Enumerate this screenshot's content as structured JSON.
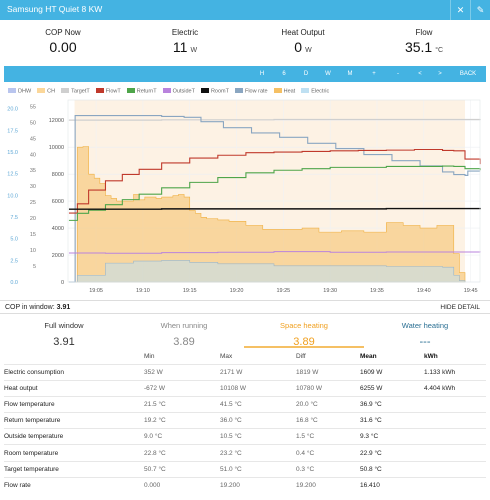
{
  "app": {
    "title": "Samsung HT Quiet 8 KW",
    "close_glyph": "✕",
    "edit_glyph": "✎"
  },
  "kpis": [
    {
      "label": "COP Now",
      "value": "0.00",
      "unit": ""
    },
    {
      "label": "Electric",
      "value": "11",
      "unit": "W"
    },
    {
      "label": "Heat Output",
      "value": "0",
      "unit": "W"
    },
    {
      "label": "Flow",
      "value": "35.1",
      "unit": "°C"
    }
  ],
  "controls": [
    "H",
    "6",
    "D",
    "W",
    "M",
    "+",
    "-",
    "<",
    ">",
    "BACK"
  ],
  "chart_data": {
    "type": "line",
    "legend": [
      {
        "name": "DHW",
        "color": "#b9c5ee"
      },
      {
        "name": "CH",
        "color": "#fbd79a"
      },
      {
        "name": "TargetT",
        "color": "#cfcfcf"
      },
      {
        "name": "FlowT",
        "color": "#c0392b"
      },
      {
        "name": "ReturnT",
        "color": "#4ea54a"
      },
      {
        "name": "OutsideT",
        "color": "#b983dd"
      },
      {
        "name": "RoomT",
        "color": "#111111"
      },
      {
        "name": "Flow rate",
        "color": "#8aa6c1"
      },
      {
        "name": "Heat",
        "color": "#f5c064"
      },
      {
        "name": "Electric",
        "color": "#bfe0f2"
      }
    ],
    "x_ticks": [
      "19:05",
      "19:10",
      "19:15",
      "19:20",
      "19:25",
      "19:30",
      "19:35",
      "19:40",
      "19:45"
    ],
    "y_power_ticks": [
      "0",
      "2000",
      "4000",
      "6000",
      "8000",
      "10000",
      "12000"
    ],
    "y_temp_ticks": [
      "5",
      "10",
      "15",
      "20",
      "25",
      "30",
      "35",
      "40",
      "45",
      "50",
      "55"
    ],
    "y_flow_ticks": [
      "0.0",
      "2.5",
      "5.0",
      "7.5",
      "10.0",
      "12.5",
      "15.0",
      "17.5",
      "20.0"
    ],
    "x_range": [
      19.0333,
      19.7667
    ],
    "y_power_range": [
      0,
      13500
    ],
    "y_temp_range": [
      0,
      57
    ],
    "y_flow_range": [
      0,
      21
    ],
    "series": [
      {
        "name": "Heat",
        "points": [
          [
            19.038,
            0
          ],
          [
            19.045,
            0
          ],
          [
            19.05,
            10000
          ],
          [
            19.06,
            10050
          ],
          [
            19.07,
            8000
          ],
          [
            19.08,
            7700
          ],
          [
            19.09,
            7300
          ],
          [
            19.1,
            6400
          ],
          [
            19.11,
            6200
          ],
          [
            19.12,
            6000
          ],
          [
            19.13,
            6000
          ],
          [
            19.14,
            6000
          ],
          [
            19.15,
            6500
          ],
          [
            19.16,
            6100
          ],
          [
            19.17,
            6300
          ],
          [
            19.18,
            6300
          ],
          [
            19.19,
            6200
          ],
          [
            19.2,
            6300
          ],
          [
            19.21,
            6300
          ],
          [
            19.22,
            6400
          ],
          [
            19.23,
            6500
          ],
          [
            19.24,
            6300
          ],
          [
            19.25,
            5300
          ],
          [
            19.26,
            5100
          ],
          [
            19.27,
            4800
          ],
          [
            19.28,
            4700
          ],
          [
            19.3,
            4600
          ],
          [
            19.32,
            4500
          ],
          [
            19.35,
            4200
          ],
          [
            19.38,
            3900
          ],
          [
            19.42,
            3900
          ],
          [
            19.45,
            4000
          ],
          [
            19.48,
            3700
          ],
          [
            19.52,
            3800
          ],
          [
            19.56,
            3700
          ],
          [
            19.6,
            4400
          ],
          [
            19.63,
            4200
          ],
          [
            19.66,
            4000
          ],
          [
            19.69,
            4200
          ],
          [
            19.72,
            2100
          ],
          [
            19.73,
            700
          ],
          [
            19.74,
            0
          ]
        ]
      },
      {
        "name": "Electric",
        "points": [
          [
            19.038,
            0
          ],
          [
            19.045,
            0
          ],
          [
            19.05,
            500
          ],
          [
            19.1,
            1400
          ],
          [
            19.15,
            1550
          ],
          [
            19.2,
            1600
          ],
          [
            19.25,
            1450
          ],
          [
            19.3,
            1350
          ],
          [
            19.4,
            1200
          ],
          [
            19.5,
            1200
          ],
          [
            19.6,
            1150
          ],
          [
            19.7,
            1100
          ],
          [
            19.72,
            500
          ],
          [
            19.73,
            100
          ],
          [
            19.74,
            0
          ]
        ]
      },
      {
        "name": "FlowT",
        "points": [
          [
            19.035,
            21.6
          ],
          [
            19.045,
            21.6
          ],
          [
            19.05,
            24.5
          ],
          [
            19.07,
            28.8
          ],
          [
            19.1,
            31.7
          ],
          [
            19.13,
            33.7
          ],
          [
            19.16,
            35.3
          ],
          [
            19.2,
            37.3
          ],
          [
            19.25,
            38.8
          ],
          [
            19.3,
            39.7
          ],
          [
            19.35,
            40.5
          ],
          [
            19.4,
            40.7
          ],
          [
            19.45,
            40.9
          ],
          [
            19.5,
            41.1
          ],
          [
            19.55,
            41.2
          ],
          [
            19.6,
            41.3
          ],
          [
            19.65,
            41.5
          ],
          [
            19.7,
            41.2
          ],
          [
            19.72,
            41.1
          ],
          [
            19.74,
            38.5
          ],
          [
            19.767,
            36.9
          ]
        ]
      },
      {
        "name": "ReturnT",
        "points": [
          [
            19.035,
            19.3
          ],
          [
            19.045,
            19.3
          ],
          [
            19.05,
            21.5
          ],
          [
            19.07,
            22.5
          ],
          [
            19.1,
            24.2
          ],
          [
            19.13,
            25.8
          ],
          [
            19.16,
            27.5
          ],
          [
            19.2,
            29.5
          ],
          [
            19.25,
            31.2
          ],
          [
            19.3,
            32.7
          ],
          [
            19.35,
            34.2
          ],
          [
            19.4,
            35.0
          ],
          [
            19.45,
            35.5
          ],
          [
            19.5,
            35.9
          ],
          [
            19.6,
            36.2
          ],
          [
            19.7,
            36.3
          ],
          [
            19.72,
            36.2
          ],
          [
            19.74,
            35.5
          ],
          [
            19.767,
            35.0
          ]
        ]
      },
      {
        "name": "OutsideT",
        "points": [
          [
            19.035,
            9.1
          ],
          [
            19.1,
            9.0
          ],
          [
            19.2,
            9.2
          ],
          [
            19.3,
            9.3
          ],
          [
            19.4,
            9.5
          ],
          [
            19.5,
            9.3
          ],
          [
            19.6,
            9.4
          ],
          [
            19.7,
            9.4
          ],
          [
            19.767,
            9.3
          ]
        ]
      },
      {
        "name": "RoomT",
        "points": [
          [
            19.035,
            22.8
          ],
          [
            19.2,
            22.9
          ],
          [
            19.4,
            22.9
          ],
          [
            19.6,
            23.0
          ],
          [
            19.767,
            23.2
          ]
        ]
      },
      {
        "name": "TargetT",
        "points": [
          [
            19.035,
            50.7
          ],
          [
            19.2,
            50.8
          ],
          [
            19.4,
            50.9
          ],
          [
            19.6,
            50.9
          ],
          [
            19.767,
            51.0
          ]
        ]
      },
      {
        "name": "Flow rate",
        "points": [
          [
            19.035,
            0
          ],
          [
            19.044,
            0
          ],
          [
            19.046,
            19.2
          ],
          [
            19.1,
            19.2
          ],
          [
            19.2,
            19.1
          ],
          [
            19.24,
            19.0
          ],
          [
            19.27,
            18.5
          ],
          [
            19.31,
            17.8
          ],
          [
            19.36,
            17.2
          ],
          [
            19.41,
            16.7
          ],
          [
            19.46,
            16.0
          ],
          [
            19.51,
            15.4
          ],
          [
            19.56,
            14.7
          ],
          [
            19.61,
            14.0
          ],
          [
            19.66,
            13.4
          ],
          [
            19.7,
            12.7
          ],
          [
            19.72,
            12.4
          ],
          [
            19.74,
            12.3
          ],
          [
            19.745,
            12.8
          ],
          [
            19.767,
            12.8
          ]
        ]
      }
    ]
  },
  "cop_window": {
    "label": "COP in window:",
    "value": "3.91",
    "hide_detail": "HIDE DETAIL"
  },
  "modes": [
    {
      "label": "Full window",
      "value": "3.91",
      "color": "#333333"
    },
    {
      "label": "When running",
      "value": "3.89",
      "color": "#888888"
    },
    {
      "label": "Space heating",
      "value": "3.89",
      "color": "#f0a020"
    },
    {
      "label": "Water heating",
      "value": "---",
      "color": "#2a6f93"
    }
  ],
  "table": {
    "headers": [
      "",
      "Min",
      "Max",
      "Diff",
      "Mean",
      "kWh"
    ],
    "rows": [
      {
        "name": "Electric consumption",
        "min": "352 W",
        "max": "2171 W",
        "diff": "1819 W",
        "mean": "1609 W",
        "kwh": "1.133 kWh"
      },
      {
        "name": "Heat output",
        "min": "-672 W",
        "max": "10108 W",
        "diff": "10780 W",
        "mean": "6255 W",
        "kwh": "4.404 kWh"
      },
      {
        "name": "Flow temperature",
        "min": "21.5 °C",
        "max": "41.5 °C",
        "diff": "20.0 °C",
        "mean": "36.9 °C",
        "kwh": ""
      },
      {
        "name": "Return temperature",
        "min": "19.2 °C",
        "max": "36.0 °C",
        "diff": "16.8 °C",
        "mean": "31.6 °C",
        "kwh": ""
      },
      {
        "name": "Outside temperature",
        "min": "9.0 °C",
        "max": "10.5 °C",
        "diff": "1.5 °C",
        "mean": "9.3 °C",
        "kwh": ""
      },
      {
        "name": "Room temperature",
        "min": "22.8 °C",
        "max": "23.2 °C",
        "diff": "0.4 °C",
        "mean": "22.9 °C",
        "kwh": ""
      },
      {
        "name": "Target temperature",
        "min": "50.7 °C",
        "max": "51.0 °C",
        "diff": "0.3 °C",
        "mean": "50.8 °C",
        "kwh": ""
      },
      {
        "name": "Flow rate",
        "min": "0.000",
        "max": "19.200",
        "diff": "19.200",
        "mean": "16.410",
        "kwh": ""
      }
    ]
  }
}
